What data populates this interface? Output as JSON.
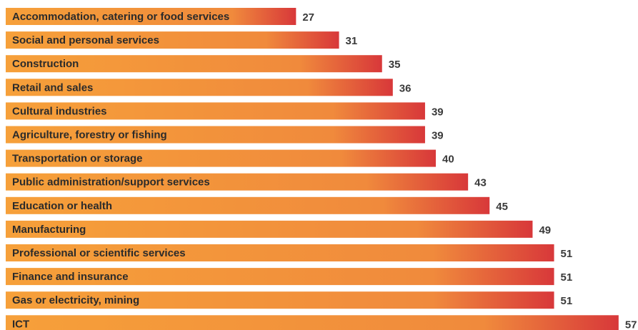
{
  "chart_data": {
    "type": "bar",
    "orientation": "horizontal",
    "categories": [
      "Accommodation, catering or food services",
      "Social and personal services",
      "Construction",
      "Retail and sales",
      "Cultural industries",
      "Agriculture, forestry or fishing",
      "Transportation or storage",
      "Public administration/support services",
      "Education or health",
      "Manufacturing",
      "Professional or scientific services",
      "Finance and insurance",
      "Gas or electricity, mining",
      "ICT"
    ],
    "values": [
      27,
      31,
      35,
      36,
      39,
      39,
      40,
      43,
      45,
      49,
      51,
      51,
      51,
      57
    ],
    "title": "",
    "xlabel": "",
    "ylabel": "",
    "xlim": [
      0,
      57
    ],
    "grid": false,
    "legend": "none",
    "data_labels": true,
    "colors": {
      "bar_start": "#f6a03a",
      "bar_mid": "#f08a3c",
      "bar_end": "#d8383a",
      "label_text": "#2b2b2b",
      "value_text": "#3a3a3a"
    }
  }
}
